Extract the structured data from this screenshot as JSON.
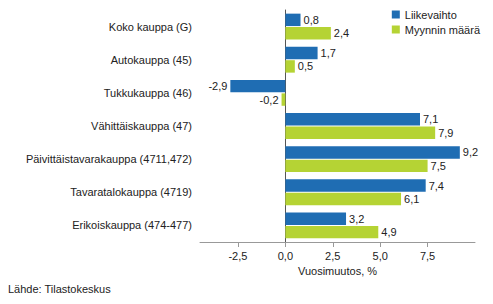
{
  "chart_data": {
    "type": "bar",
    "orientation": "horizontal",
    "categories": [
      "Koko kauppa (G)",
      "Autokauppa (45)",
      "Tukkukauppa (46)",
      "Vähittäiskauppa (47)",
      "Päivittäistavarakauppa (4711,472)",
      "Tavaratalokauppa (4719)",
      "Erikoiskauppa (474-477)"
    ],
    "series": [
      {
        "name": "Liikevaihto",
        "color": "#1f6db3",
        "values": [
          0.8,
          1.7,
          -2.9,
          7.1,
          9.2,
          7.4,
          3.2
        ],
        "value_labels": [
          "0,8",
          "1,7",
          "-2,9",
          "7,1",
          "9,2",
          "7,4",
          "3,2"
        ]
      },
      {
        "name": "Myynnin määrä",
        "color": "#b5d334",
        "values": [
          2.4,
          0.5,
          -0.2,
          7.9,
          7.5,
          6.1,
          4.9
        ],
        "value_labels": [
          "2,4",
          "0,5",
          "-0,2",
          "7,9",
          "7,5",
          "6,1",
          "4,9"
        ]
      }
    ],
    "x_label": "Vuosimuutos, %",
    "xlim": [
      -4.5,
      10
    ],
    "xticks": [
      {
        "value": -2.5,
        "label": "-2,5"
      },
      {
        "value": 0,
        "label": "0,0"
      },
      {
        "value": 2.5,
        "label": "2,5"
      },
      {
        "value": 5,
        "label": "5,0"
      },
      {
        "value": 7.5,
        "label": "7,5"
      }
    ],
    "grid": false,
    "legend": "top-right",
    "data_labels": true,
    "source": "Lähde: Tilastokeskus"
  }
}
